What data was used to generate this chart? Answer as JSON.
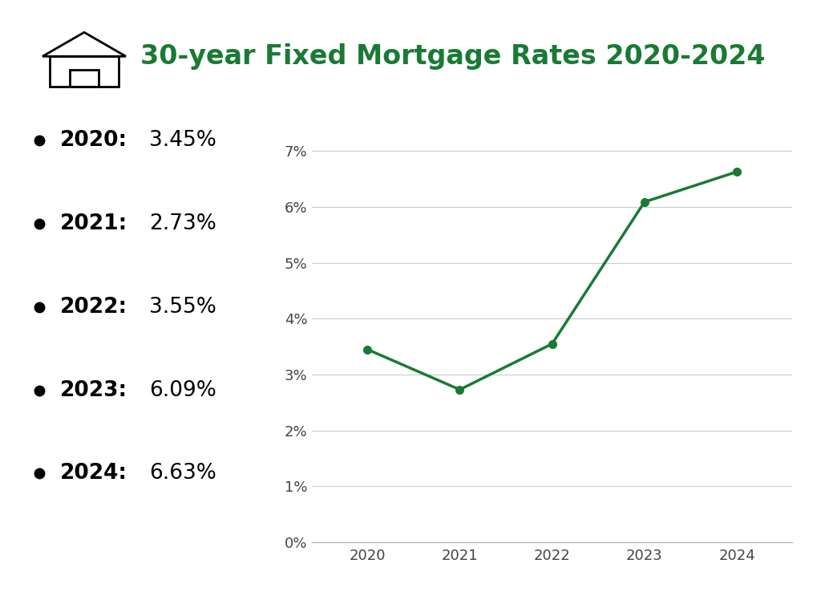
{
  "title": "30-year Fixed Mortgage Rates 2020-2024",
  "title_color": "#1a7a35",
  "title_fontsize": 24,
  "years": [
    2020,
    2021,
    2022,
    2023,
    2024
  ],
  "rates": [
    3.45,
    2.73,
    3.55,
    6.09,
    6.63
  ],
  "bullet_labels": [
    "2020",
    "2021",
    "2022",
    "2023",
    "2024"
  ],
  "bullet_values": [
    "3.45%",
    "2.73%",
    "3.55%",
    "6.09%",
    "6.63%"
  ],
  "line_color": "#1a7a35",
  "marker_color": "#1a7a35",
  "line_width": 2.5,
  "marker_size": 7,
  "bg_color": "#ffffff",
  "yticks": [
    0,
    1,
    2,
    3,
    4,
    5,
    6,
    7
  ],
  "ytick_labels": [
    "0%",
    "1%",
    "2%",
    "3%",
    "4%",
    "5%",
    "6%",
    "7%"
  ],
  "ylim": [
    0,
    7.5
  ],
  "grid_color": "#cccccc",
  "tick_fontsize": 13,
  "bullet_fontsize": 19,
  "house_color": "#000000"
}
